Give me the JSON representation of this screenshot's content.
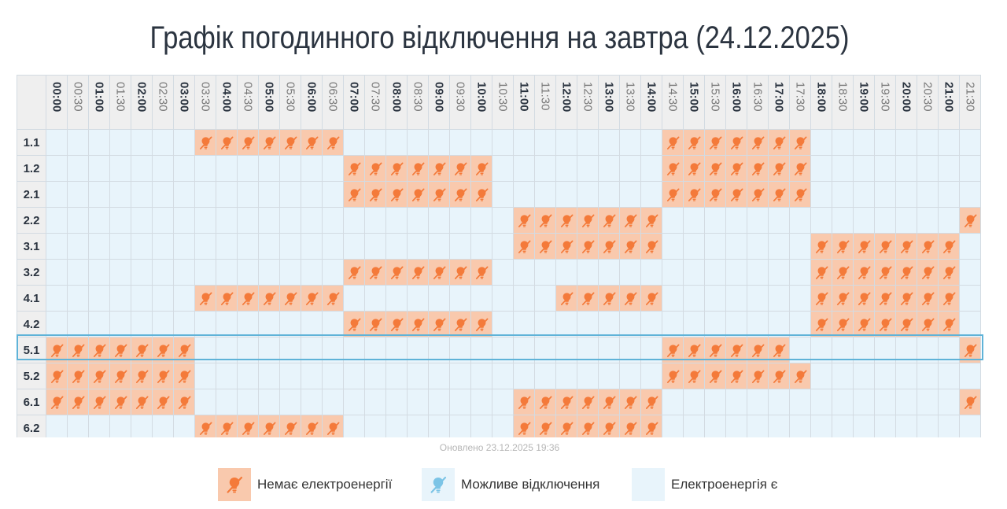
{
  "title": "Графік погодинного відключення на завтра (24.12.2025)",
  "updated": "Оновлено 23.12.2025 19:36",
  "colors": {
    "off": "#f9c9ad",
    "on": "#e8f4fb",
    "icon": "#f47a3a",
    "icon_possible": "#7cc4e6"
  },
  "chart_data": {
    "type": "table",
    "columns": [
      "00:00",
      "00:30",
      "01:00",
      "01:30",
      "02:00",
      "02:30",
      "03:00",
      "03:30",
      "04:00",
      "04:30",
      "05:00",
      "05:30",
      "06:00",
      "06:30",
      "07:00",
      "07:30",
      "08:00",
      "08:30",
      "09:00",
      "09:30",
      "10:00",
      "10:30",
      "11:00",
      "11:30",
      "12:00",
      "12:30",
      "13:00",
      "13:30",
      "14:00",
      "14:30",
      "15:00",
      "15:30",
      "16:00",
      "16:30",
      "17:00",
      "17:30",
      "18:00",
      "18:30",
      "19:00",
      "19:30",
      "20:00",
      "20:30",
      "21:00",
      "21:30"
    ],
    "rows": [
      {
        "group": "1.1",
        "off": [
          [
            7,
            13
          ],
          [
            29,
            35
          ]
        ]
      },
      {
        "group": "1.2",
        "off": [
          [
            14,
            20
          ],
          [
            29,
            35
          ]
        ]
      },
      {
        "group": "2.1",
        "off": [
          [
            14,
            20
          ],
          [
            29,
            35
          ]
        ]
      },
      {
        "group": "2.2",
        "off": [
          [
            22,
            28
          ],
          [
            43,
            44
          ]
        ]
      },
      {
        "group": "3.1",
        "off": [
          [
            22,
            28
          ],
          [
            36,
            42
          ]
        ]
      },
      {
        "group": "3.2",
        "off": [
          [
            14,
            20
          ],
          [
            36,
            42
          ]
        ]
      },
      {
        "group": "4.1",
        "off": [
          [
            7,
            13
          ],
          [
            24,
            28
          ],
          [
            36,
            42
          ]
        ]
      },
      {
        "group": "4.2",
        "off": [
          [
            14,
            20
          ],
          [
            36,
            42
          ]
        ]
      },
      {
        "group": "5.1",
        "off": [
          [
            0,
            6
          ],
          [
            29,
            34
          ],
          [
            43,
            44
          ]
        ]
      },
      {
        "group": "5.2",
        "off": [
          [
            0,
            6
          ],
          [
            29,
            35
          ]
        ]
      },
      {
        "group": "6.1",
        "off": [
          [
            0,
            6
          ],
          [
            22,
            28
          ],
          [
            43,
            44
          ]
        ]
      },
      {
        "group": "6.2",
        "off": [
          [
            7,
            13
          ],
          [
            22,
            28
          ]
        ]
      }
    ],
    "selected_row": "5.1"
  },
  "legend": [
    {
      "label": "Немає електроенергії",
      "type": "off",
      "icon": "no-power-icon"
    },
    {
      "label": "Можливе відключення",
      "type": "possible",
      "icon": "possible-outage-icon"
    },
    {
      "label": "Електроенергія є",
      "type": "on",
      "icon": ""
    }
  ]
}
